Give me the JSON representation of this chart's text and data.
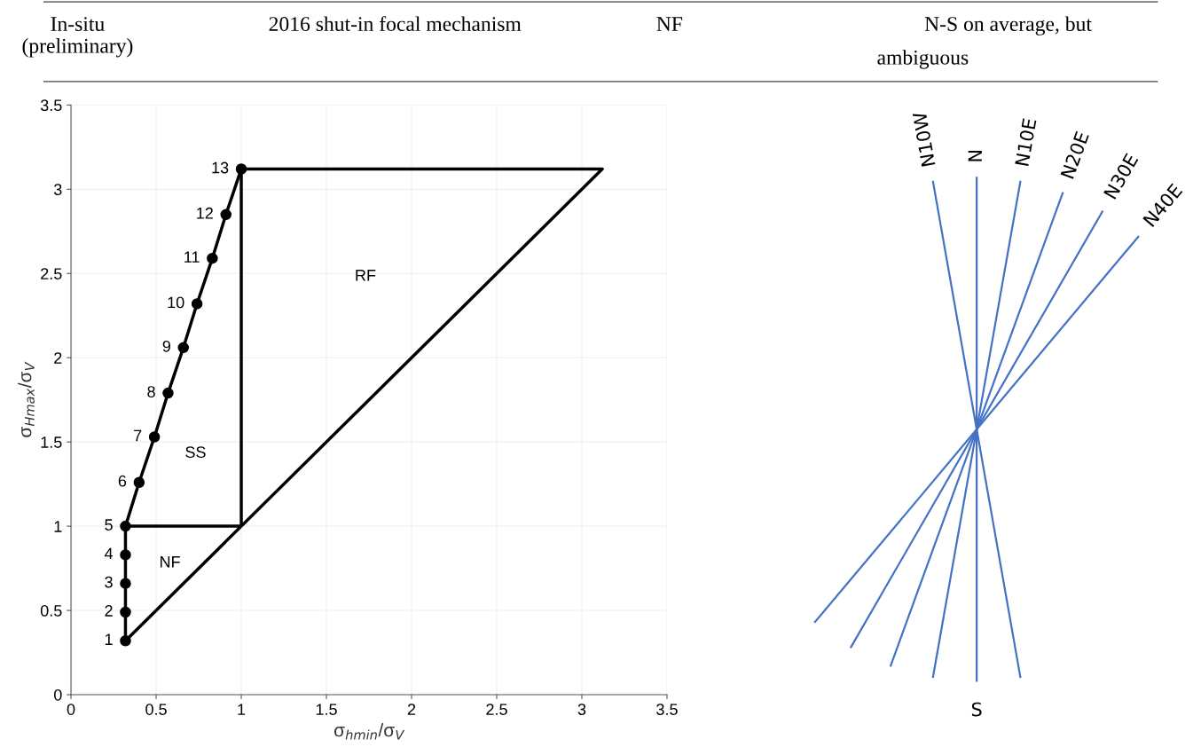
{
  "chart_data": [
    {
      "type": "other",
      "annotations": [
        "In-situ\n(preliminary)",
        "2016 shut-in focal mechanism",
        "NF",
        "N-S on average, but\nambiguous"
      ]
    },
    {
      "type": "line",
      "xlabel": "σ$_{hmin}$/σ$_{V}$",
      "ylabel": "σ$_{Hmax}$/σ$_{V}$",
      "xlim": [
        0,
        3.5
      ],
      "ylim": [
        0,
        3.5
      ],
      "xticks": [
        0,
        0.5,
        1,
        1.5,
        2,
        2.5,
        3,
        3.5
      ],
      "yticks": [
        0,
        0.5,
        1,
        1.5,
        2,
        2.5,
        3,
        3.5
      ],
      "grid": true,
      "series": [
        {
          "color": "#000000",
          "marker": "circle",
          "x": [
            0.32,
            0.32,
            0.32,
            0.32,
            0.32,
            0.4,
            0.49,
            0.57,
            0.66,
            0.74,
            0.83,
            0.91,
            1.0
          ],
          "values": [
            0.32,
            0.49,
            0.66,
            0.83,
            1.0,
            1.26,
            1.53,
            1.79,
            2.06,
            2.32,
            2.59,
            2.85,
            3.12
          ]
        },
        {
          "color": "#000000",
          "marker": "none",
          "x": [
            0.32,
            3.12,
            1.0,
            1.0,
            1.0,
            0.32
          ],
          "values": [
            0.32,
            3.12,
            3.12,
            1.0,
            1.0,
            1.0
          ]
        }
      ],
      "annotations": [
        {
          "text": "1",
          "x": 0.32,
          "y": 0.32
        },
        {
          "text": "2",
          "x": 0.32,
          "y": 0.49
        },
        {
          "text": "3",
          "x": 0.32,
          "y": 0.66
        },
        {
          "text": "4",
          "x": 0.32,
          "y": 0.83
        },
        {
          "text": "5",
          "x": 0.32,
          "y": 1.0
        },
        {
          "text": "6",
          "x": 0.4,
          "y": 1.26
        },
        {
          "text": "7",
          "x": 0.49,
          "y": 1.53
        },
        {
          "text": "8",
          "x": 0.57,
          "y": 1.79
        },
        {
          "text": "9",
          "x": 0.66,
          "y": 2.06
        },
        {
          "text": "10",
          "x": 0.74,
          "y": 2.32
        },
        {
          "text": "11",
          "x": 0.83,
          "y": 2.59
        },
        {
          "text": "12",
          "x": 0.91,
          "y": 2.85
        },
        {
          "text": "13",
          "x": 1.0,
          "y": 3.12
        },
        "NF",
        "SS",
        "RF"
      ]
    },
    {
      "type": "other",
      "categories": [
        "N10W",
        "N",
        "N10E",
        "N20E",
        "N30E",
        "N40E"
      ],
      "color": "#4472c4",
      "annotations": [
        "S"
      ]
    }
  ]
}
